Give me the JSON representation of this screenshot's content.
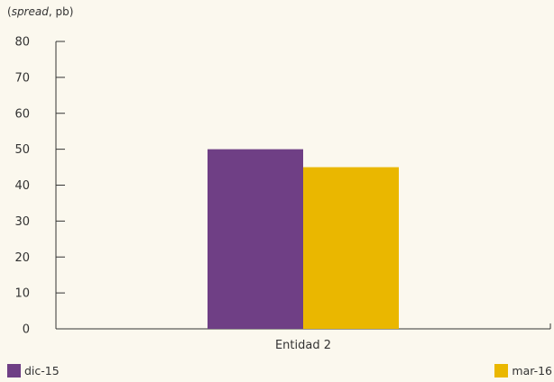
{
  "chart_data": {
    "type": "bar",
    "title": "",
    "unit_label": {
      "open": "(",
      "emphasis": "spread",
      "rest": ", pb)"
    },
    "categories": [
      "Entidad 2"
    ],
    "series": [
      {
        "name": "dic-15",
        "color": "#6f3f85",
        "values": [
          50
        ]
      },
      {
        "name": "mar-16",
        "color": "#eab700",
        "values": [
          45
        ]
      }
    ],
    "xlabel": "",
    "ylabel": "",
    "ylim": [
      0,
      80
    ],
    "yticks": [
      0,
      10,
      20,
      30,
      40,
      50,
      60,
      70,
      80
    ],
    "grid": false,
    "legend_placement": "bottom"
  }
}
